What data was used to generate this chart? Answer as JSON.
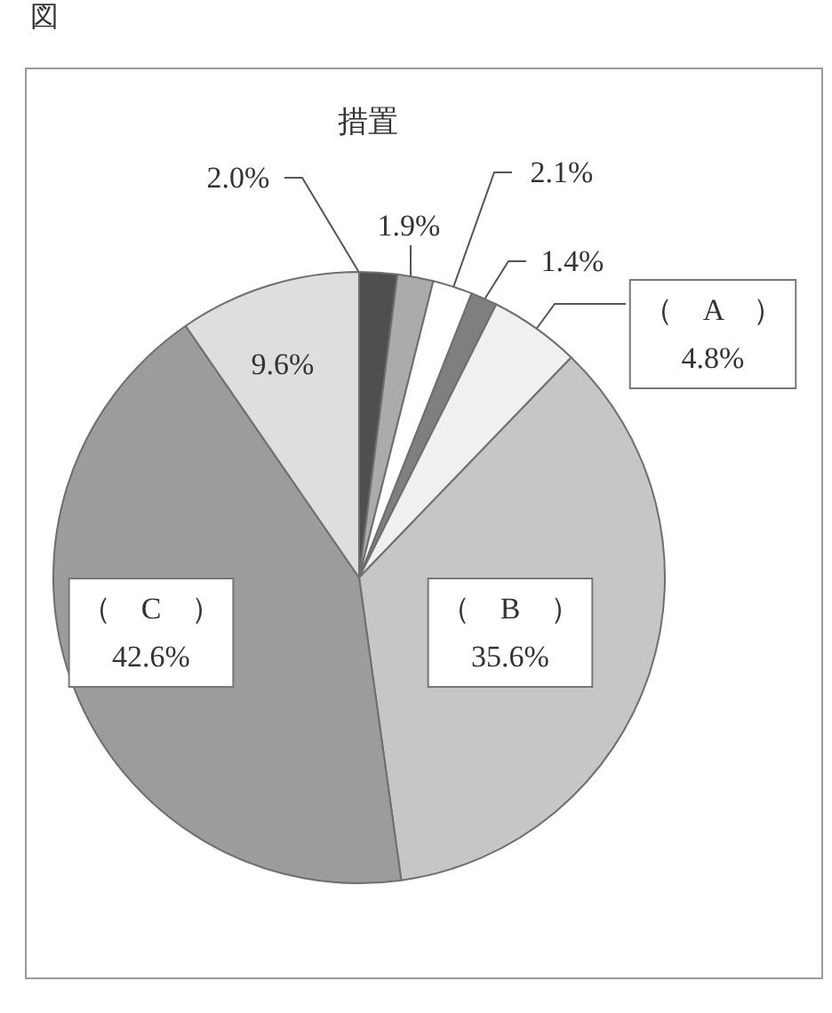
{
  "chart_data": {
    "type": "pie",
    "title": "措置",
    "annotations": [
      "図"
    ],
    "categories": [
      null,
      null,
      null,
      null,
      "（　A　）",
      "（　B　）",
      "（　C　）",
      null
    ],
    "values": [
      2.0,
      1.9,
      2.1,
      1.4,
      4.8,
      35.6,
      42.6,
      9.6
    ],
    "value_labels": [
      "2.0%",
      "1.9%",
      "2.1%",
      "1.4%",
      "4.8%",
      "35.6%",
      "42.6%",
      "9.6%"
    ],
    "colors": [
      "#4f4f4f",
      "#ababab",
      "#ffffff",
      "#7f7f7f",
      "#f0f0f0",
      "#c6c6c6",
      "#9c9c9c",
      "#dedede"
    ]
  }
}
